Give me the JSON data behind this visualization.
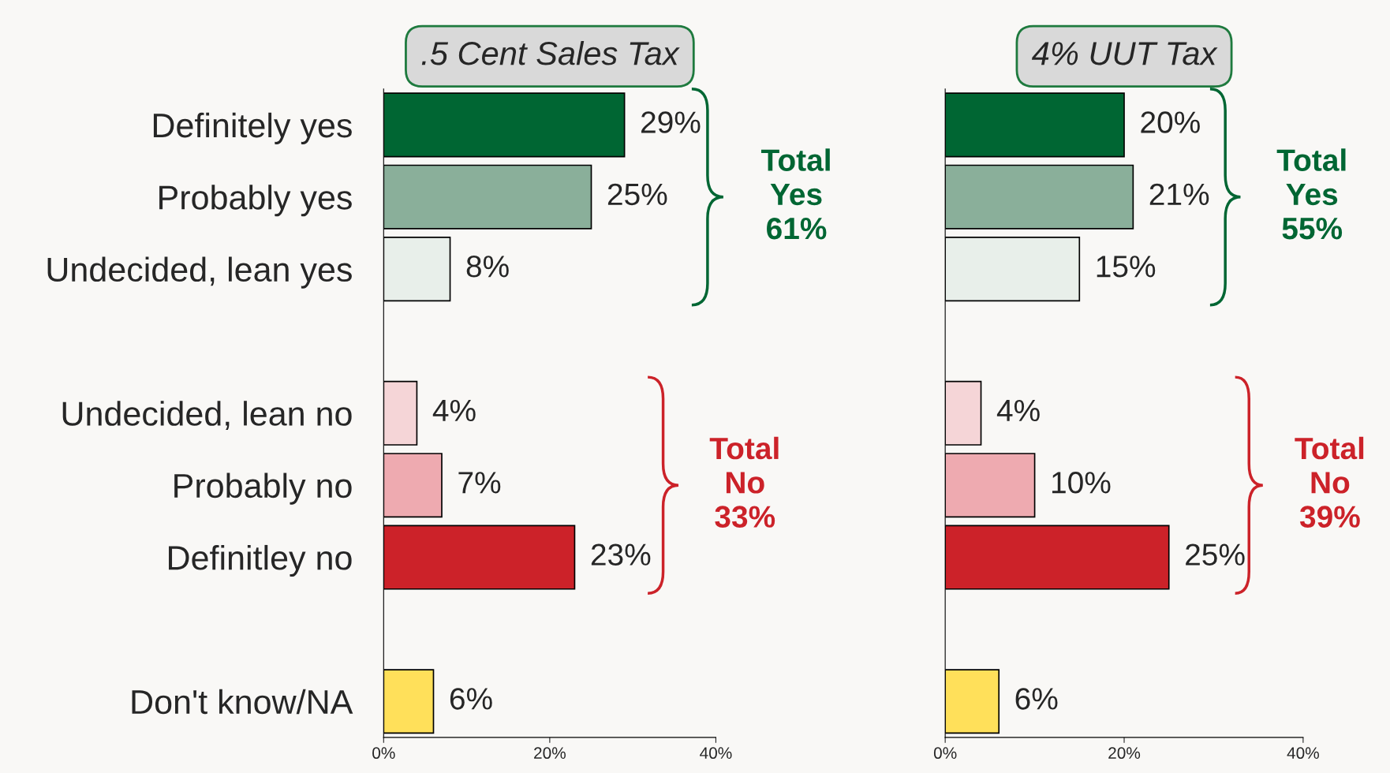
{
  "chart_data": [
    {
      "type": "bar",
      "orientation": "horizontal",
      "title": ".5 Cent Sales Tax",
      "categories": [
        "Definitely yes",
        "Probably yes",
        "Undecided, lean yes",
        null,
        "Undecided, lean no",
        "Probably no",
        "Definitley no",
        null,
        "Don't know/NA"
      ],
      "values": [
        29,
        25,
        8,
        null,
        4,
        7,
        23,
        null,
        6
      ],
      "value_labels": [
        "29%",
        "25%",
        "8%",
        null,
        "4%",
        "7%",
        "23%",
        null,
        "6%"
      ],
      "colors": [
        "#006633",
        "#8aaf9a",
        "#e8efea",
        null,
        "#f5d5d7",
        "#eeaab0",
        "#cc2229",
        null,
        "#ffe05a"
      ],
      "xlim": [
        0,
        40
      ],
      "xticks": [
        {
          "value": 0,
          "label": "0%"
        },
        {
          "value": 20,
          "label": "20%"
        },
        {
          "value": 40,
          "label": "40%"
        }
      ],
      "annotations": [
        "Total\nYes\n61%",
        "Total\nNo\n33%"
      ]
    },
    {
      "type": "bar",
      "orientation": "horizontal",
      "title": "4% UUT Tax",
      "categories": [
        null,
        null,
        null,
        null,
        null,
        null,
        null,
        null,
        null
      ],
      "values": [
        20,
        21,
        15,
        null,
        4,
        10,
        25,
        null,
        6
      ],
      "value_labels": [
        "20%",
        "21%",
        "15%",
        null,
        "4%",
        "10%",
        "25%",
        null,
        "6%"
      ],
      "colors": [
        "#006633",
        "#8aaf9a",
        "#e8efea",
        null,
        "#f5d5d7",
        "#eeaab0",
        "#cc2229",
        null,
        "#ffe05a"
      ],
      "xlim": [
        0,
        40
      ],
      "xticks": [
        {
          "value": 0,
          "label": "0%"
        },
        {
          "value": 20,
          "label": "20%"
        },
        {
          "value": 40,
          "label": "40%"
        }
      ],
      "annotations": [
        "Total\nYes\n55%",
        "Total\nNo\n39%"
      ]
    }
  ]
}
